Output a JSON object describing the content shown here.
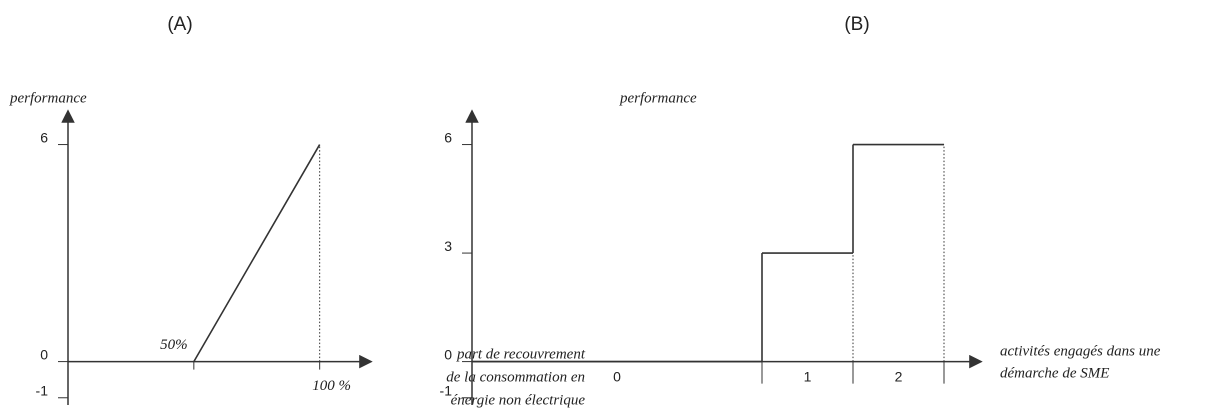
{
  "chart_data": [
    {
      "type": "line",
      "title": "(A)",
      "ylabel": "performance",
      "xlabel": [
        "part de recouvrement",
        "de la consommation en",
        "énergie non électrique"
      ],
      "x": [
        50,
        100
      ],
      "values": [
        0,
        6
      ],
      "color": "#333",
      "xlim": [
        0,
        120
      ],
      "xticks": [
        {
          "value": 50,
          "label": "50%"
        },
        {
          "value": 100,
          "label": "100 %"
        }
      ],
      "ylim": [
        -1.2,
        6.9
      ],
      "yticks": [
        -1,
        0,
        6
      ]
    },
    {
      "type": "step",
      "title": "(B)",
      "ylabel": "performance",
      "xlabel": [
        "activités engagés dans une",
        "démarche de SME"
      ],
      "categories": [
        "0",
        "1",
        "2"
      ],
      "values": [
        0,
        3,
        6
      ],
      "color": "#333",
      "ylim": [
        -1.2,
        6.9
      ],
      "yticks": [
        -1,
        0,
        3,
        6
      ]
    }
  ]
}
